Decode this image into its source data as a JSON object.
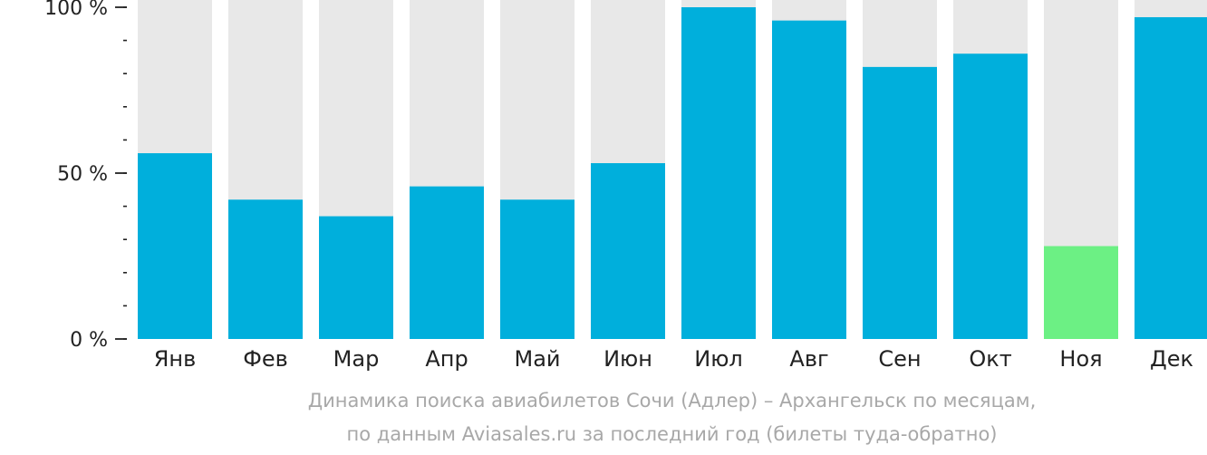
{
  "chart_data": {
    "type": "bar",
    "categories": [
      "Янв",
      "Фев",
      "Мар",
      "Апр",
      "Май",
      "Июн",
      "Июл",
      "Авг",
      "Сен",
      "Окт",
      "Ноя",
      "Дек"
    ],
    "values": [
      56,
      42,
      37,
      46,
      42,
      53,
      100,
      96,
      82,
      86,
      28,
      97
    ],
    "highlighted_category": "Ноя",
    "ylim": [
      0,
      100
    ],
    "y_ticks": [
      {
        "value": 0,
        "label": "0 %"
      },
      {
        "value": 50,
        "label": "50 %"
      },
      {
        "value": 100,
        "label": "100 %"
      }
    ],
    "y_minor_tick_step": 10,
    "caption_line1": "Динамика поиска авиабилетов Сочи (Адлер) – Архангельск по месяцам,",
    "caption_line2": "по данным Aviasales.ru за последний год (билеты туда-обратно)",
    "colors": {
      "bar": "#00afdc",
      "bar_highlight": "#6cf084",
      "bar_background": "#e8e8e8",
      "axis": "#222222",
      "caption": "#a8a8a8"
    }
  }
}
